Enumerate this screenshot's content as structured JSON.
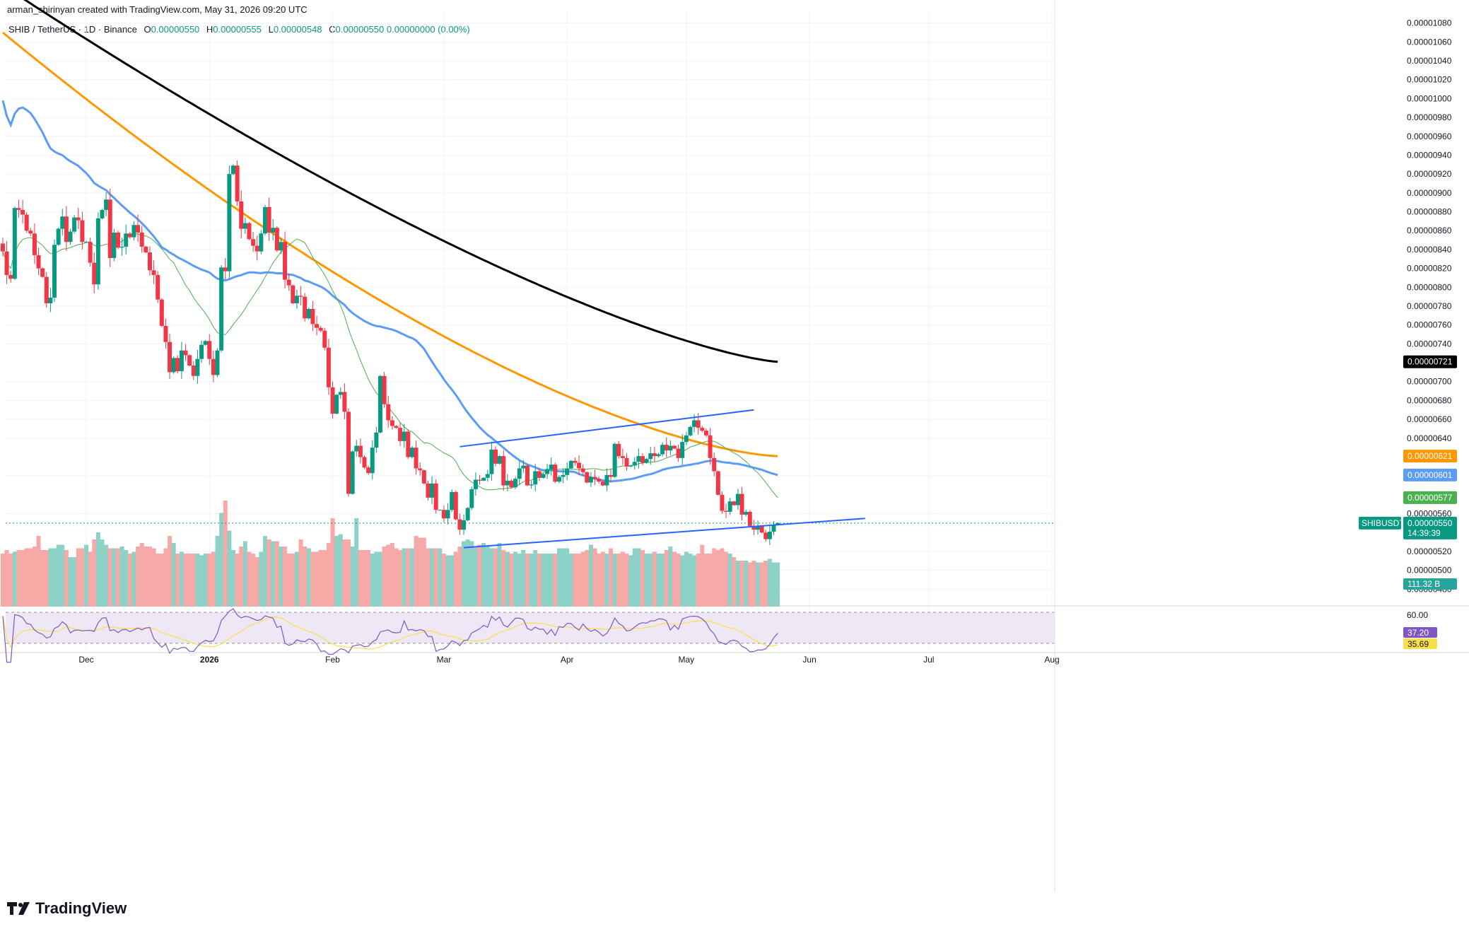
{
  "header": {
    "credit": "arman_shirinyan created with TradingView.com, May 31, 2026 09:20 UTC",
    "symbol": "SHIB / TetherUS · 1D · Binance",
    "o_label": "O",
    "o_value": "0.00000550",
    "h_label": "H",
    "h_value": "0.00000555",
    "l_label": "L",
    "l_value": "0.00000548",
    "c_label": "C",
    "c_value": "0.00000550",
    "change": "0.00000000 (0.00%)"
  },
  "brand": {
    "name": "TradingView",
    "icon": "tradingview-logo-icon"
  },
  "colors": {
    "up": "#089981",
    "down": "#F23645",
    "vol_up": "#8ED1C6",
    "vol_down": "#F7A9A7",
    "ma_black": "#000000",
    "ma_orange": "#FF9800",
    "ma_blue": "#5B9CF6",
    "ma_green": "#4CAF50",
    "trendline": "#2962FF",
    "rsi": "#7E57C2",
    "rsi_ma": "#F9E04B",
    "rsi_band": "#EDE7F6"
  },
  "chart_data": {
    "type": "candlestick",
    "title": "SHIB / TetherUS · 1D · Binance",
    "y_min": 4.6e-06,
    "y_max": 1.085e-05,
    "y_ticks": [
      "0.00001080",
      "0.00001060",
      "0.00001040",
      "0.00001020",
      "0.00001000",
      "0.00000980",
      "0.00000960",
      "0.00000940",
      "0.00000920",
      "0.00000900",
      "0.00000880",
      "0.00000860",
      "0.00000840",
      "0.00000820",
      "0.00000800",
      "0.00000780",
      "0.00000760",
      "0.00000740",
      "0.00000700",
      "0.00000680",
      "0.00000660",
      "0.00000640",
      "0.00000600",
      "0.00000560",
      "0.00000520",
      "0.00000500",
      "0.00000480"
    ],
    "x_ticks": [
      "Dec",
      "2026",
      "Feb",
      "Mar",
      "Apr",
      "May",
      "Jun",
      "Jul",
      "Aug"
    ],
    "x_tick_dates": [
      "2025-12-01",
      "2026-01-01",
      "2026-02-01",
      "2026-03-01",
      "2026-04-01",
      "2026-05-01",
      "2026-06-01",
      "2026-07-01",
      "2026-08-01"
    ],
    "start_date": "2025-11-10",
    "closes": [
      8.38e-06,
      8.13e-06,
      8.09e-06,
      8.84e-06,
      8.82e-06,
      8.77e-06,
      8.6e-06,
      8.57e-06,
      8.34e-06,
      8.2e-06,
      8.11e-06,
      7.83e-06,
      7.89e-06,
      8.45e-06,
      8.62e-06,
      8.75e-06,
      8.48e-06,
      8.59e-06,
      8.74e-06,
      8.71e-06,
      8.48e-06,
      8.48e-06,
      8.26e-06,
      8.03e-06,
      8.73e-06,
      8.82e-06,
      8.93e-06,
      8.31e-06,
      8.58e-06,
      8.42e-06,
      8.43e-06,
      8.57e-06,
      8.53e-06,
      8.66e-06,
      8.58e-06,
      8.43e-06,
      8.37e-06,
      8.18e-06,
      8.13e-06,
      7.87e-06,
      7.59e-06,
      7.42e-06,
      7.1e-06,
      7.25e-06,
      7.11e-06,
      7.33e-06,
      7.28e-06,
      7.17e-06,
      7.06e-06,
      7.24e-06,
      7.39e-06,
      7.43e-06,
      7.24e-06,
      7.07e-06,
      7.33e-06,
      8.21e-06,
      8.17e-06,
      9.2e-06,
      9.29e-06,
      8.91e-06,
      8.62e-06,
      8.68e-06,
      8.51e-06,
      8.44e-06,
      8.38e-06,
      8.57e-06,
      8.85e-06,
      8.58e-06,
      8.63e-06,
      8.39e-06,
      8.48e-06,
      8.08e-06,
      8.02e-06,
      7.83e-06,
      7.91e-06,
      7.9e-06,
      7.67e-06,
      7.77e-06,
      7.61e-06,
      7.57e-06,
      7.54e-06,
      7.36e-06,
      6.94e-06,
      6.66e-06,
      6.86e-06,
      6.89e-06,
      6.68e-06,
      5.81e-06,
      6.26e-06,
      6.32e-06,
      6.2e-06,
      6.09e-06,
      6.03e-06,
      6.3e-06,
      6.46e-06,
      7.06e-06,
      6.76e-06,
      6.59e-06,
      6.53e-06,
      6.51e-06,
      6.37e-06,
      6.47e-06,
      6.2e-06,
      6.3e-06,
      6.08e-06,
      6.06e-06,
      5.92e-06,
      5.77e-06,
      5.92e-06,
      5.64e-06,
      5.64e-06,
      5.55e-06,
      5.64e-06,
      5.83e-06,
      5.54e-06,
      5.43e-06,
      5.53e-06,
      5.66e-06,
      5.86e-06,
      5.96e-06,
      5.95e-06,
      5.98e-06,
      6.02e-06,
      6.28e-06,
      6.13e-06,
      6.21e-06,
      5.9e-06,
      5.95e-06,
      5.88e-06,
      5.97e-06,
      6.08e-06,
      6.11e-06,
      5.9e-06,
      5.91e-06,
      6.05e-06,
      5.98e-06,
      6.02e-06,
      6.07e-06,
      6.12e-06,
      5.94e-06,
      5.99e-06,
      6.01e-06,
      6.08e-06,
      6.16e-06,
      6.14e-06,
      6.08e-06,
      6.04e-06,
      5.93e-06,
      5.99e-06,
      5.97e-06,
      5.94e-06,
      5.9e-06,
      6.01e-06,
      5.99e-06,
      6.34e-06,
      6.21e-06,
      6.19e-06,
      6.1e-06,
      6.11e-06,
      6.15e-06,
      6.21e-06,
      6.14e-06,
      6.18e-06,
      6.24e-06,
      6.21e-06,
      6.23e-06,
      6.33e-06,
      6.27e-06,
      6.32e-06,
      6.29e-06,
      6.19e-06,
      6.36e-06,
      6.43e-06,
      6.52e-06,
      6.59e-06,
      6.51e-06,
      6.48e-06,
      6.43e-06,
      6.19e-06,
      6.05e-06,
      5.8e-06,
      5.63e-06,
      5.62e-06,
      5.73e-06,
      5.69e-06,
      5.81e-06,
      5.59e-06,
      5.62e-06,
      5.47e-06,
      5.43e-06,
      5.47e-06,
      5.4e-06,
      5.33e-06,
      5.41e-06,
      5.48e-06,
      5.5e-06
    ],
    "volumes_B": [
      300,
      320,
      300,
      310,
      320,
      320,
      330,
      330,
      340,
      400,
      320,
      320,
      330,
      330,
      350,
      350,
      320,
      280,
      280,
      330,
      330,
      350,
      310,
      380,
      420,
      380,
      350,
      330,
      330,
      330,
      340,
      320,
      300,
      310,
      340,
      360,
      340,
      340,
      330,
      300,
      300,
      330,
      400,
      360,
      300,
      310,
      300,
      300,
      300,
      300,
      290,
      300,
      300,
      310,
      400,
      530,
      600,
      430,
      320,
      300,
      340,
      370,
      310,
      300,
      280,
      310,
      400,
      380,
      370,
      370,
      340,
      340,
      300,
      300,
      310,
      380,
      340,
      330,
      310,
      310,
      320,
      320,
      360,
      500,
      400,
      410,
      380,
      380,
      340,
      500,
      320,
      320,
      320,
      300,
      310,
      310,
      340,
      350,
      360,
      330,
      320,
      330,
      330,
      330,
      400,
      390,
      390,
      330,
      330,
      330,
      330,
      300,
      290,
      290,
      310,
      340,
      370,
      380,
      370,
      340,
      350,
      360,
      340,
      330,
      330,
      360,
      320,
      310,
      300,
      310,
      300,
      320,
      300,
      300,
      320,
      300,
      300,
      300,
      300,
      300,
      330,
      330,
      330,
      300,
      300,
      300,
      310,
      320,
      350,
      330,
      300,
      310,
      300,
      330,
      300,
      300,
      310,
      300,
      290,
      330,
      330,
      320,
      300,
      300,
      310,
      300,
      300,
      320,
      340,
      310,
      300,
      290,
      310,
      300,
      290,
      300,
      350,
      300,
      300,
      330,
      320,
      330,
      310,
      300,
      280,
      260,
      260,
      260,
      250,
      260,
      250,
      250,
      260,
      270,
      250,
      250,
      240,
      230,
      220
    ],
    "rsi_ticks": [
      "60.00"
    ],
    "rsi_value": "37.20",
    "rsi_ma_value": "35.69",
    "volume_label": "111.32 B",
    "ma_labels": {
      "black": "0.00000721",
      "orange": "0.00000621",
      "blue": "0.00000601",
      "green": "0.00000577"
    },
    "price_badge": {
      "symbol": "SHIBUSDT",
      "price": "0.00000550",
      "countdown": "14:39:39"
    },
    "trendlines": [
      {
        "from": [
          "2026-03-05",
          6.31e-06
        ],
        "to": [
          "2026-05-18",
          6.7e-06
        ]
      },
      {
        "from": [
          "2026-03-06",
          5.24e-06
        ],
        "to": [
          "2026-06-15",
          5.55e-06
        ]
      }
    ]
  }
}
